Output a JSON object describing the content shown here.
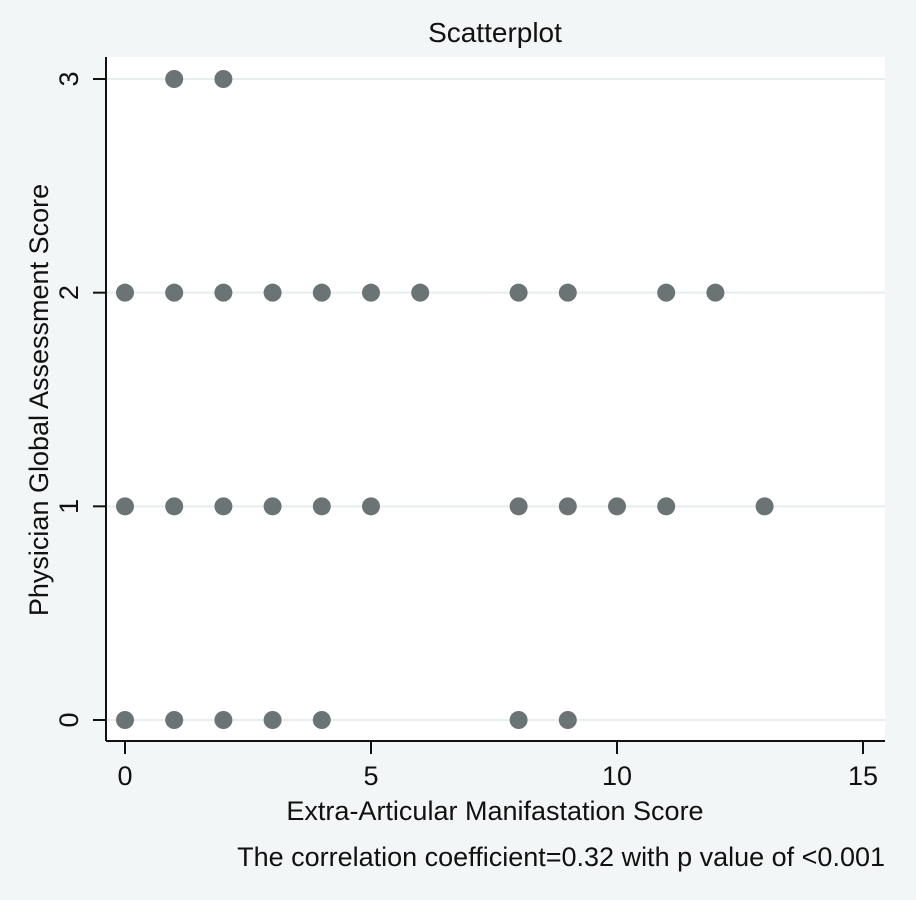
{
  "chart_data": {
    "type": "scatter",
    "title": "Scatterplot",
    "xlabel": "Extra-Articular Manifastation Score",
    "ylabel": "Physician Global Assessment Score",
    "note": "The correlation coefficient=0.32 with p value of <0.001",
    "xlim": [
      0,
      15
    ],
    "ylim": [
      0,
      3
    ],
    "xticks": [
      0,
      5,
      10,
      15
    ],
    "yticks": [
      0,
      1,
      2,
      3
    ],
    "grid": true,
    "colors": {
      "marker": "#6b7474",
      "grid": "#e8eeee",
      "background": "#f3f6f6",
      "plot": "#ffffff"
    },
    "points": [
      {
        "x": 1,
        "y": 3
      },
      {
        "x": 2,
        "y": 3
      },
      {
        "x": 0,
        "y": 2
      },
      {
        "x": 1,
        "y": 2
      },
      {
        "x": 2,
        "y": 2
      },
      {
        "x": 3,
        "y": 2
      },
      {
        "x": 4,
        "y": 2
      },
      {
        "x": 5,
        "y": 2
      },
      {
        "x": 6,
        "y": 2
      },
      {
        "x": 8,
        "y": 2
      },
      {
        "x": 9,
        "y": 2
      },
      {
        "x": 11,
        "y": 2
      },
      {
        "x": 12,
        "y": 2
      },
      {
        "x": 0,
        "y": 1
      },
      {
        "x": 1,
        "y": 1
      },
      {
        "x": 2,
        "y": 1
      },
      {
        "x": 3,
        "y": 1
      },
      {
        "x": 4,
        "y": 1
      },
      {
        "x": 5,
        "y": 1
      },
      {
        "x": 8,
        "y": 1
      },
      {
        "x": 9,
        "y": 1
      },
      {
        "x": 10,
        "y": 1
      },
      {
        "x": 11,
        "y": 1
      },
      {
        "x": 13,
        "y": 1
      },
      {
        "x": 0,
        "y": 0
      },
      {
        "x": 1,
        "y": 0
      },
      {
        "x": 2,
        "y": 0
      },
      {
        "x": 3,
        "y": 0
      },
      {
        "x": 4,
        "y": 0
      },
      {
        "x": 8,
        "y": 0
      },
      {
        "x": 9,
        "y": 0
      }
    ]
  }
}
